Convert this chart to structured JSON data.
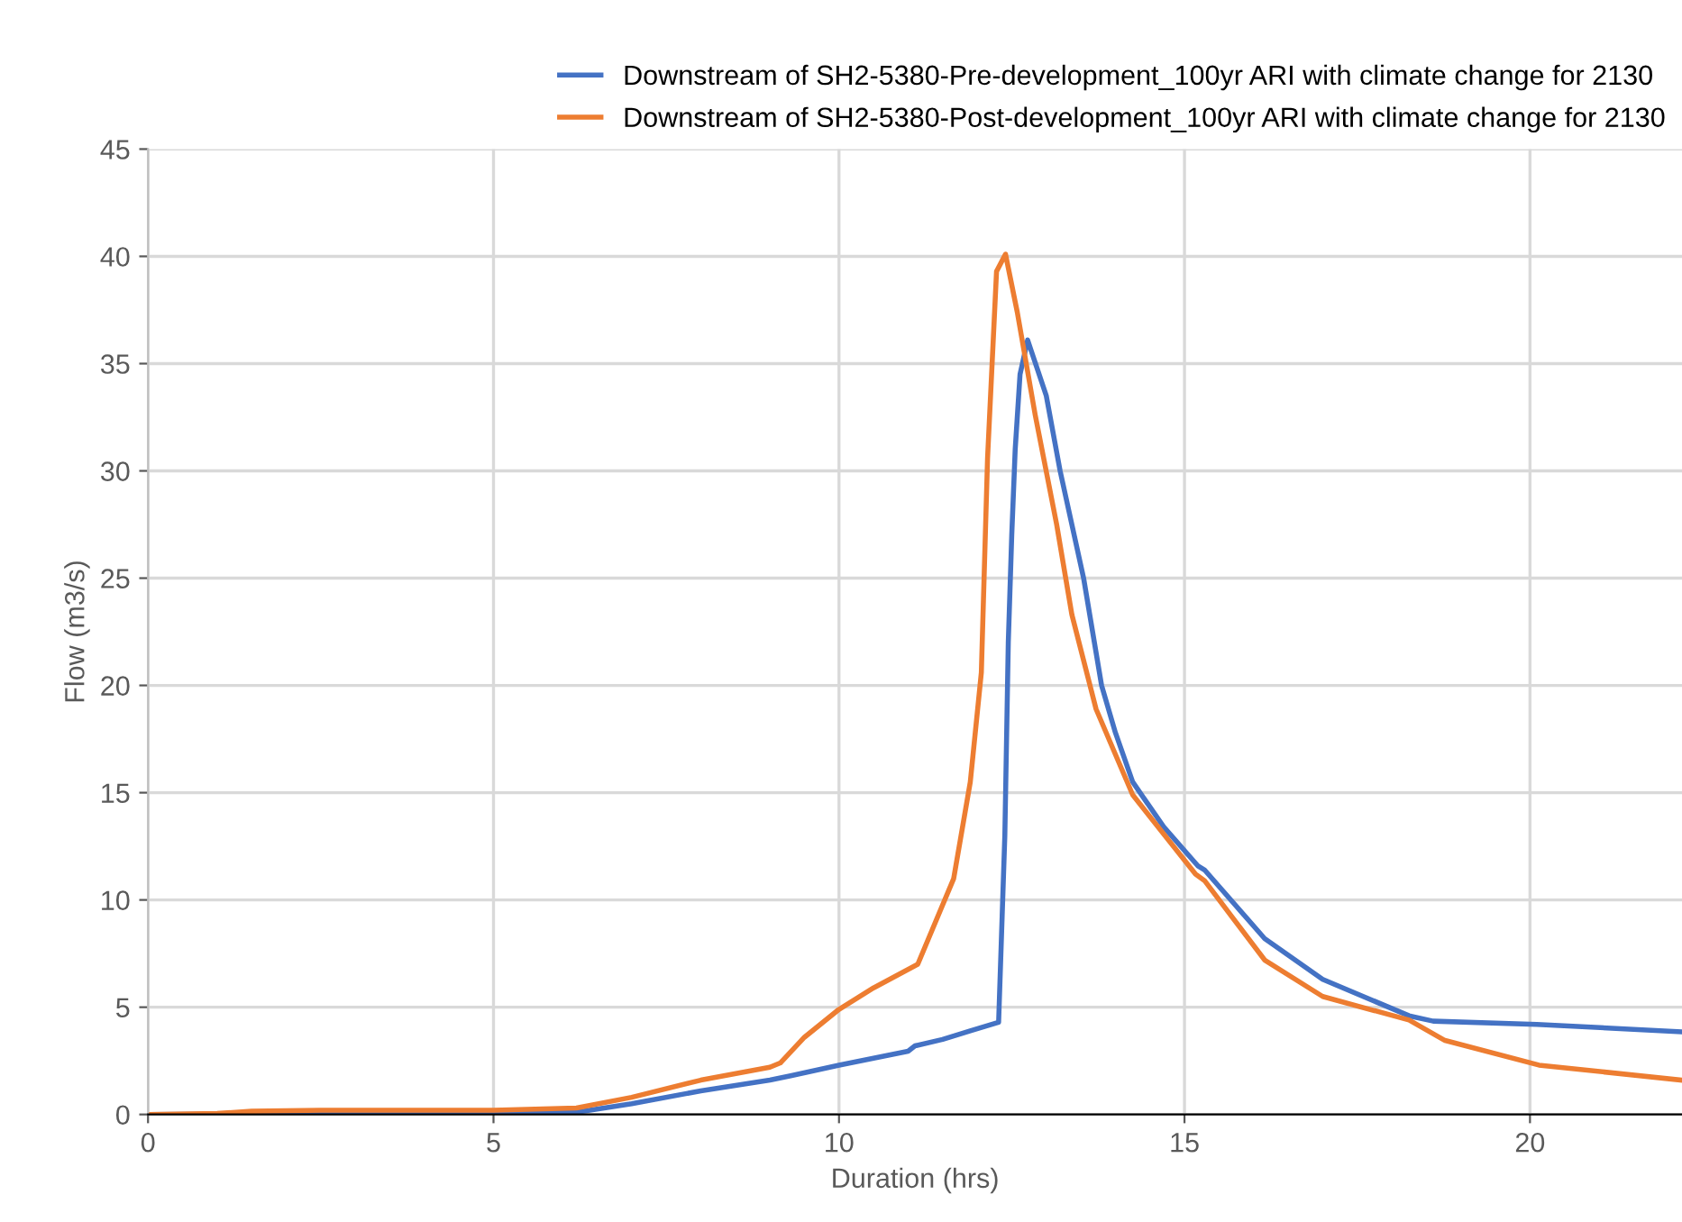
{
  "chart_data": {
    "type": "line",
    "xlabel": "Duration (hrs)",
    "ylabel": "Flow (m3/s)",
    "xlim": [
      0,
      22.2
    ],
    "xticks": [
      0,
      5,
      10,
      15,
      20
    ],
    "ylim": [
      0,
      45
    ],
    "yticks": [
      0,
      5,
      10,
      15,
      20,
      25,
      30,
      35,
      40,
      45
    ],
    "grid": true,
    "legend": "top right",
    "marker": "none",
    "line_style": "solid",
    "series": [
      {
        "name": "Downstream of SH2-5380-Pre-development_100yr ARI with climate change for 2130",
        "color": "#4472c4",
        "x": [
          0,
          6.2,
          7,
          8,
          9,
          9.3,
          10,
          11,
          11.1,
          11.5,
          11.9,
          12.31,
          12.4,
          12.45,
          12.5,
          12.55,
          12.62,
          12.73,
          13.0,
          13.2,
          13.54,
          13.8,
          14.0,
          14.25,
          14.7,
          15.19,
          15.29,
          16.16,
          17.0,
          18.25,
          18.6,
          20.1,
          22.2
        ],
        "values": [
          0,
          0.1,
          0.5,
          1.1,
          1.6,
          1.8,
          2.3,
          2.95,
          3.2,
          3.5,
          3.9,
          4.3,
          13,
          22,
          27,
          31,
          34.5,
          36.1,
          33.5,
          30,
          25,
          20,
          17.8,
          15.5,
          13.4,
          11.6,
          11.4,
          8.2,
          6.3,
          4.6,
          4.35,
          4.2,
          3.85
        ]
      },
      {
        "name": "Downstream of SH2-5380-Post-development_100yr ARI with climate change for 2130",
        "color": "#ed7d31",
        "x": [
          0,
          1,
          1.5,
          2.5,
          5,
          6.2,
          7,
          8,
          9,
          9.15,
          9.5,
          10,
          10.5,
          11.14,
          11.66,
          11.9,
          12.06,
          12.15,
          12.28,
          12.41,
          12.58,
          12.84,
          13.15,
          13.37,
          13.72,
          14.25,
          15.16,
          15.29,
          16.16,
          17.0,
          18.25,
          18.77,
          20.13,
          22.2
        ],
        "values": [
          0,
          0.05,
          0.15,
          0.2,
          0.2,
          0.3,
          0.8,
          1.6,
          2.2,
          2.4,
          3.6,
          4.9,
          5.9,
          7.0,
          11.0,
          15.5,
          20.6,
          30.6,
          39.3,
          40.1,
          37.4,
          32.6,
          27.5,
          23.3,
          18.9,
          14.9,
          11.2,
          10.9,
          7.2,
          5.5,
          4.4,
          3.45,
          2.3,
          1.6
        ]
      }
    ]
  }
}
